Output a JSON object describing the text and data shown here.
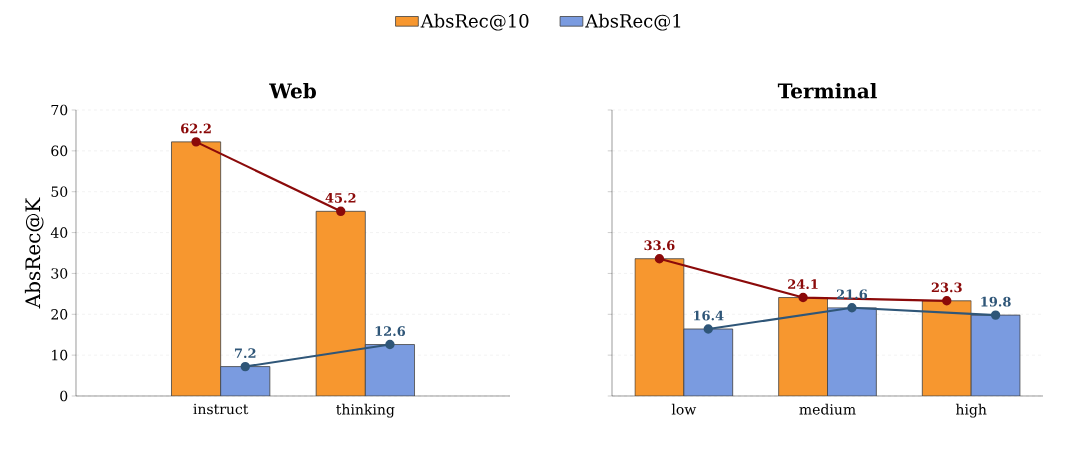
{
  "chart_data": [
    {
      "type": "bar",
      "title": "Web",
      "ylabel": "AbsRec@K",
      "categories": [
        "instruct",
        "thinking"
      ],
      "ylim": [
        0,
        70
      ],
      "yticks": [
        0,
        10,
        20,
        30,
        40,
        50,
        60,
        70
      ],
      "grid": "y",
      "legend": "top",
      "series": [
        {
          "name": "AbsRec@10",
          "color": "#f7972f",
          "values": [
            62.2,
            45.2
          ]
        },
        {
          "name": "AbsRec@1",
          "color": "#7a9be0",
          "values": [
            7.2,
            12.6
          ]
        },
        {
          "type": "line",
          "color": "#8b0a0a",
          "marker": "circle",
          "values": [
            62.2,
            45.2
          ],
          "value_labels": [
            "62.2",
            "45.2"
          ]
        },
        {
          "type": "line",
          "color": "#2f5678",
          "marker": "circle",
          "values": [
            7.2,
            12.6
          ],
          "value_labels": [
            "7.2",
            "12.6"
          ]
        }
      ]
    },
    {
      "type": "bar",
      "title": "Terminal",
      "categories": [
        "low",
        "medium",
        "high"
      ],
      "ylim": [
        0,
        70
      ],
      "yticks": [
        0,
        10,
        20,
        30,
        40,
        50,
        60,
        70
      ],
      "grid": "y",
      "tick_labels": "x",
      "series": [
        {
          "color": "#f7972f",
          "values": [
            33.6,
            24.1,
            23.3
          ]
        },
        {
          "color": "#7a9be0",
          "values": [
            16.4,
            21.6,
            19.8
          ]
        },
        {
          "type": "line",
          "color": "#8b0a0a",
          "marker": "circle",
          "values": [
            33.6,
            24.1,
            23.3
          ],
          "value_labels": [
            "33.6",
            "24.1",
            "23.3"
          ]
        },
        {
          "type": "line",
          "color": "#2f5678",
          "marker": "circle",
          "values": [
            16.4,
            21.6,
            19.8
          ],
          "value_labels": [
            "16.4",
            "21.6",
            "19.8"
          ]
        }
      ]
    }
  ]
}
